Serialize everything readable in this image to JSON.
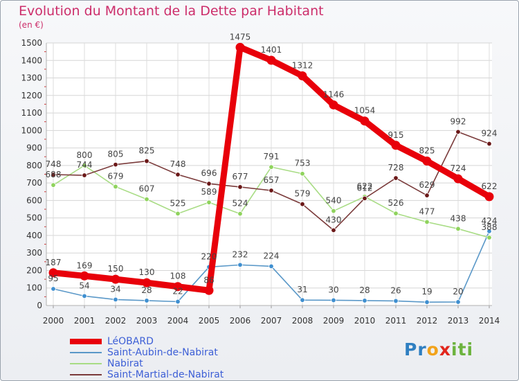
{
  "title": "Evolution du Montant de la Dette par Habitant",
  "unit": "(en €)",
  "brand": {
    "letters": [
      "P",
      "r",
      "o",
      "x",
      "i",
      "t",
      "i"
    ],
    "colors": [
      "#2f7fc1",
      "#2f7fc1",
      "#f2a31b",
      "#e1261c",
      "#6cb33e",
      "#6cb33e",
      "#6cb33e"
    ]
  },
  "chart_data": {
    "type": "line",
    "title": "Evolution du Montant de la Dette par Habitant",
    "ylabel": "(en €)",
    "xlabel": "",
    "x": [
      "2000",
      "2001",
      "2002",
      "2003",
      "2004",
      "2005",
      "2006",
      "2007",
      "2008",
      "2009",
      "2010",
      "2011",
      "2012",
      "2013",
      "2014"
    ],
    "ylim": [
      0,
      1500
    ],
    "yticks": [
      "0",
      "100",
      "200",
      "300",
      "400",
      "500",
      "600",
      "700",
      "800",
      "900",
      "1000",
      "1100",
      "1200",
      "1300",
      "1400",
      "1500"
    ],
    "grid": true,
    "legend_position": "bottom-left",
    "series": [
      {
        "name": "LéOBARD",
        "color": "#e8000a",
        "point_color": "#e8000a",
        "values": [
          187,
          169,
          150,
          130,
          108,
          86,
          1475,
          1401,
          1312,
          1146,
          1054,
          915,
          825,
          724,
          622
        ]
      },
      {
        "name": "Saint-Aubin-de-Nabirat",
        "color": "#5a98c8",
        "point_color": "#3f8fd0",
        "values": [
          95,
          54,
          34,
          28,
          22,
          220,
          232,
          224,
          31,
          30,
          28,
          26,
          19,
          20,
          424
        ]
      },
      {
        "name": "Nabirat",
        "color": "#a8dc84",
        "point_color": "#8fd35d",
        "values": [
          688,
          800,
          679,
          607,
          525,
          589,
          524,
          791,
          753,
          540,
          622,
          526,
          477,
          438,
          388
        ]
      },
      {
        "name": "Saint-Martial-de-Nabirat",
        "color": "#7a3a3a",
        "point_color": "#6b1818",
        "values": [
          748,
          744,
          805,
          825,
          748,
          696,
          677,
          657,
          579,
          430,
          612,
          728,
          629,
          992,
          924
        ]
      }
    ]
  }
}
